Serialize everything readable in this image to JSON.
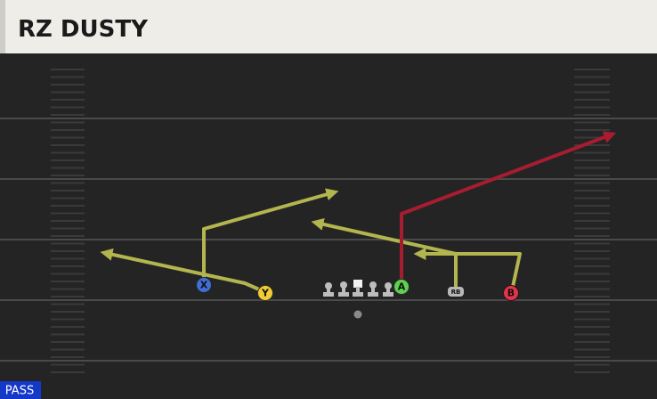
{
  "header": {
    "title": "RZ DUSTY"
  },
  "players": [
    {
      "label": "X"
    },
    {
      "label": "Y"
    },
    {
      "label": "A"
    },
    {
      "label": "RB"
    },
    {
      "label": "B"
    }
  ],
  "footer": {
    "mode": "PASS"
  }
}
